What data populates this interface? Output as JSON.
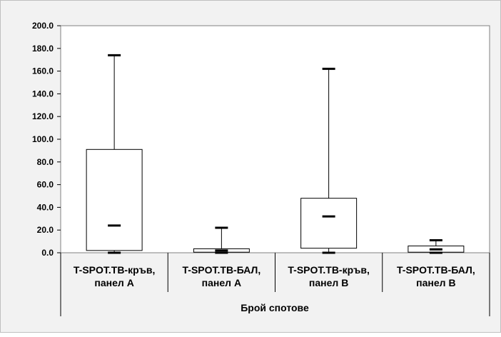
{
  "chart_data": {
    "type": "boxplot",
    "title": "",
    "xlabel": "Брой спотове",
    "ylabel": "",
    "ylim": [
      0,
      200
    ],
    "yticks": [
      0,
      20,
      40,
      60,
      80,
      100,
      120,
      140,
      160,
      180,
      200
    ],
    "ytick_labels": [
      "0.0",
      "20.0",
      "40.0",
      "60.0",
      "80.0",
      "100.0",
      "120.0",
      "140.0",
      "160.0",
      "180.0",
      "200.0"
    ],
    "grid": false,
    "legend": "none",
    "categories": [
      {
        "line1": "T-SPOT.TB-кръв,",
        "line2": "панел А"
      },
      {
        "line1": "T-SPOT.TB-БАЛ,",
        "line2": "панел А"
      },
      {
        "line1": "T-SPOT.TB-кръв,",
        "line2": "панел В"
      },
      {
        "line1": "T-SPOT.TB-БАЛ,",
        "line2": "панел В"
      }
    ],
    "boxes": [
      {
        "min": 0,
        "q1": 2,
        "median": 24,
        "q3": 91,
        "max": 174
      },
      {
        "min": 0,
        "q1": 0.5,
        "median": 2,
        "q3": 3.5,
        "max": 22
      },
      {
        "min": 0,
        "q1": 4,
        "median": 32,
        "q3": 48,
        "max": 162
      },
      {
        "min": 0,
        "q1": 0.5,
        "median": 3,
        "q3": 6,
        "max": 11
      }
    ],
    "colors": {
      "frame_background": "#f2f2f2",
      "plot_background": "#ffffff",
      "box_fill": "#ffffff",
      "lines": "#000000",
      "plot_border": "#808080"
    }
  }
}
